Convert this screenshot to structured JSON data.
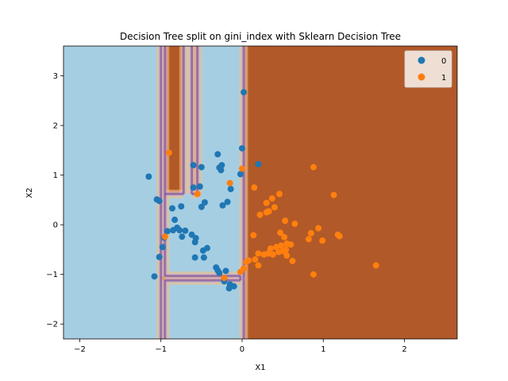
{
  "chart_data": {
    "type": "scatter",
    "title": "Decision Tree split on gini_index with Sklearn Decision Tree",
    "xlabel": "X1",
    "ylabel": "X2",
    "xlim": [
      -2.2,
      2.65
    ],
    "ylim": [
      -2.3,
      3.6
    ],
    "xticks": [
      -2,
      -1,
      0,
      1,
      2
    ],
    "yticks": [
      -2,
      -1,
      0,
      1,
      2,
      3
    ],
    "grid": false,
    "legend": {
      "placement": "top-right",
      "entries": [
        "0",
        "1"
      ]
    },
    "region_colors": {
      "class_0": "#a6cee3",
      "class_1": "#b15928"
    },
    "series": [
      {
        "name": "0",
        "color": "#1f77b4",
        "points": [
          [
            0.02,
            2.67
          ],
          [
            0.0,
            1.54
          ],
          [
            0.2,
            1.22
          ],
          [
            -0.3,
            1.42
          ],
          [
            -0.6,
            1.2
          ],
          [
            -0.5,
            1.16
          ],
          [
            -0.28,
            1.15
          ],
          [
            -0.25,
            1.2
          ],
          [
            -0.26,
            1.1
          ],
          [
            -0.02,
            1.02
          ],
          [
            -1.15,
            0.97
          ],
          [
            -0.6,
            0.75
          ],
          [
            -0.52,
            0.77
          ],
          [
            -0.14,
            0.72
          ],
          [
            -1.05,
            0.51
          ],
          [
            -1.02,
            0.48
          ],
          [
            -0.46,
            0.45
          ],
          [
            -0.18,
            0.46
          ],
          [
            -0.24,
            0.39
          ],
          [
            -0.5,
            0.36
          ],
          [
            -0.75,
            0.37
          ],
          [
            -0.86,
            0.33
          ],
          [
            -0.83,
            0.1
          ],
          [
            -0.8,
            -0.06
          ],
          [
            -0.77,
            -0.11
          ],
          [
            -0.85,
            -0.11
          ],
          [
            -0.7,
            -0.12
          ],
          [
            -0.92,
            -0.13
          ],
          [
            -0.62,
            -0.2
          ],
          [
            -0.74,
            -0.24
          ],
          [
            -0.57,
            -0.27
          ],
          [
            -0.96,
            -0.26
          ],
          [
            -0.58,
            -0.35
          ],
          [
            -0.98,
            -0.45
          ],
          [
            -0.43,
            -0.47
          ],
          [
            -0.48,
            -0.52
          ],
          [
            -1.02,
            -0.65
          ],
          [
            -0.58,
            -0.66
          ],
          [
            -0.47,
            -0.66
          ],
          [
            -0.32,
            -0.86
          ],
          [
            -0.3,
            -0.92
          ],
          [
            -0.28,
            -0.97
          ],
          [
            -0.2,
            -0.93
          ],
          [
            -1.08,
            -1.04
          ],
          [
            -0.22,
            -1.08
          ],
          [
            -0.22,
            -1.14
          ],
          [
            -0.15,
            -1.2
          ],
          [
            -0.1,
            -1.24
          ],
          [
            -0.16,
            -1.28
          ]
        ]
      },
      {
        "name": "1",
        "color": "#ff7f0e",
        "points": [
          [
            -0.9,
            1.45
          ],
          [
            0.0,
            1.13
          ],
          [
            0.88,
            1.16
          ],
          [
            -0.15,
            0.84
          ],
          [
            0.15,
            0.75
          ],
          [
            -0.55,
            0.62
          ],
          [
            0.46,
            0.62
          ],
          [
            1.13,
            0.6
          ],
          [
            0.37,
            0.53
          ],
          [
            0.3,
            0.44
          ],
          [
            0.4,
            0.35
          ],
          [
            0.33,
            0.27
          ],
          [
            0.3,
            0.25
          ],
          [
            0.22,
            0.2
          ],
          [
            0.53,
            0.08
          ],
          [
            0.65,
            0.02
          ],
          [
            0.94,
            -0.07
          ],
          [
            0.47,
            -0.16
          ],
          [
            0.85,
            -0.17
          ],
          [
            1.18,
            -0.2
          ],
          [
            1.2,
            -0.23
          ],
          [
            0.14,
            -0.21
          ],
          [
            -0.95,
            -0.24
          ],
          [
            0.52,
            -0.25
          ],
          [
            0.82,
            -0.29
          ],
          [
            0.99,
            -0.32
          ],
          [
            0.55,
            -0.38
          ],
          [
            0.6,
            -0.4
          ],
          [
            0.48,
            -0.42
          ],
          [
            0.42,
            -0.45
          ],
          [
            0.35,
            -0.48
          ],
          [
            0.54,
            -0.5
          ],
          [
            0.5,
            -0.53
          ],
          [
            0.45,
            -0.55
          ],
          [
            0.32,
            -0.58
          ],
          [
            0.2,
            -0.58
          ],
          [
            0.27,
            -0.6
          ],
          [
            0.38,
            -0.6
          ],
          [
            0.55,
            -0.62
          ],
          [
            0.62,
            -0.73
          ],
          [
            0.08,
            -0.72
          ],
          [
            0.05,
            -0.75
          ],
          [
            0.16,
            -0.7
          ],
          [
            0.2,
            -0.82
          ],
          [
            0.02,
            -0.88
          ],
          [
            -0.02,
            -0.95
          ],
          [
            1.65,
            -0.82
          ],
          [
            0.88,
            -1.0
          ],
          [
            -0.22,
            -1.07
          ]
        ]
      }
    ]
  }
}
